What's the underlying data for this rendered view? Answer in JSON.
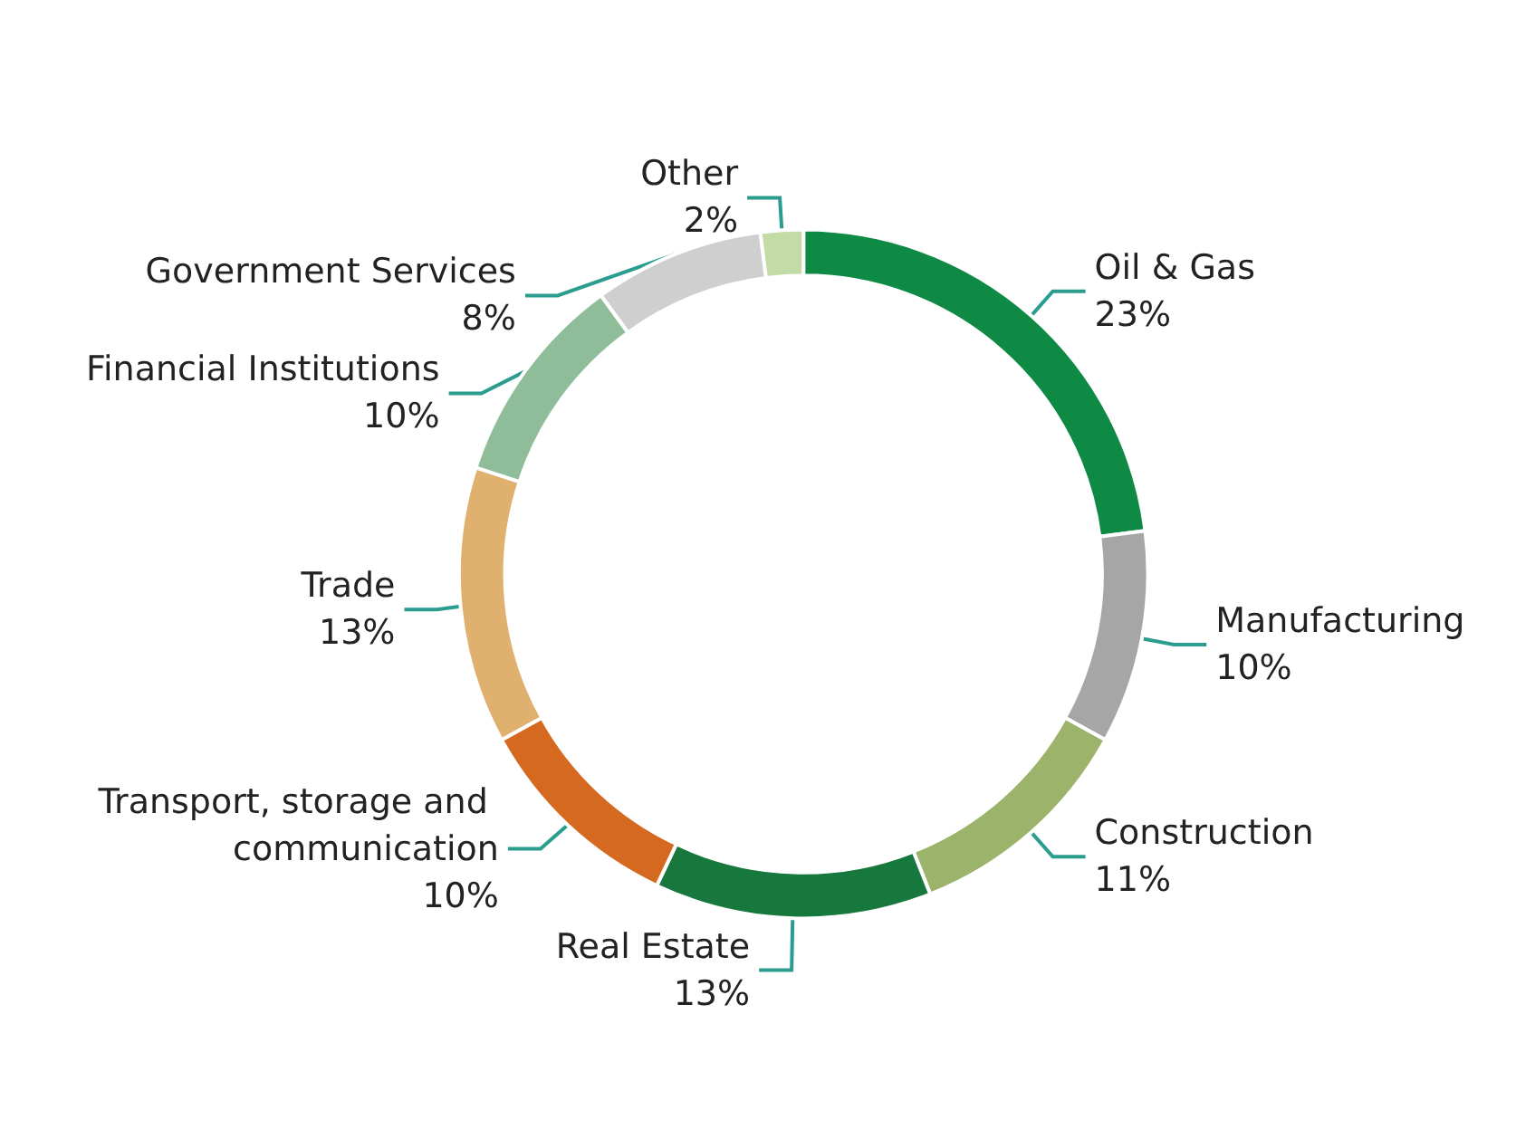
{
  "chart_data": {
    "type": "donut",
    "categories": [
      "Oil & Gas",
      "Manufacturing",
      "Construction",
      "Real Estate",
      "Transport, storage and communication",
      "Trade",
      "Financial Institutions",
      "Government Services",
      "Other"
    ],
    "values": [
      23,
      10,
      11,
      13,
      10,
      13,
      10,
      8,
      2
    ],
    "value_labels": [
      "23%",
      "10%",
      "11%",
      "13%",
      "10%",
      "13%",
      "10%",
      "8%",
      "2%"
    ],
    "colors": [
      "#0e8a45",
      "#a6a6a6",
      "#9bb36a",
      "#17783d",
      "#d4691f",
      "#e0b06e",
      "#8fbd9a",
      "#cfcfcf",
      "#c3dba5"
    ],
    "legend": false
  }
}
